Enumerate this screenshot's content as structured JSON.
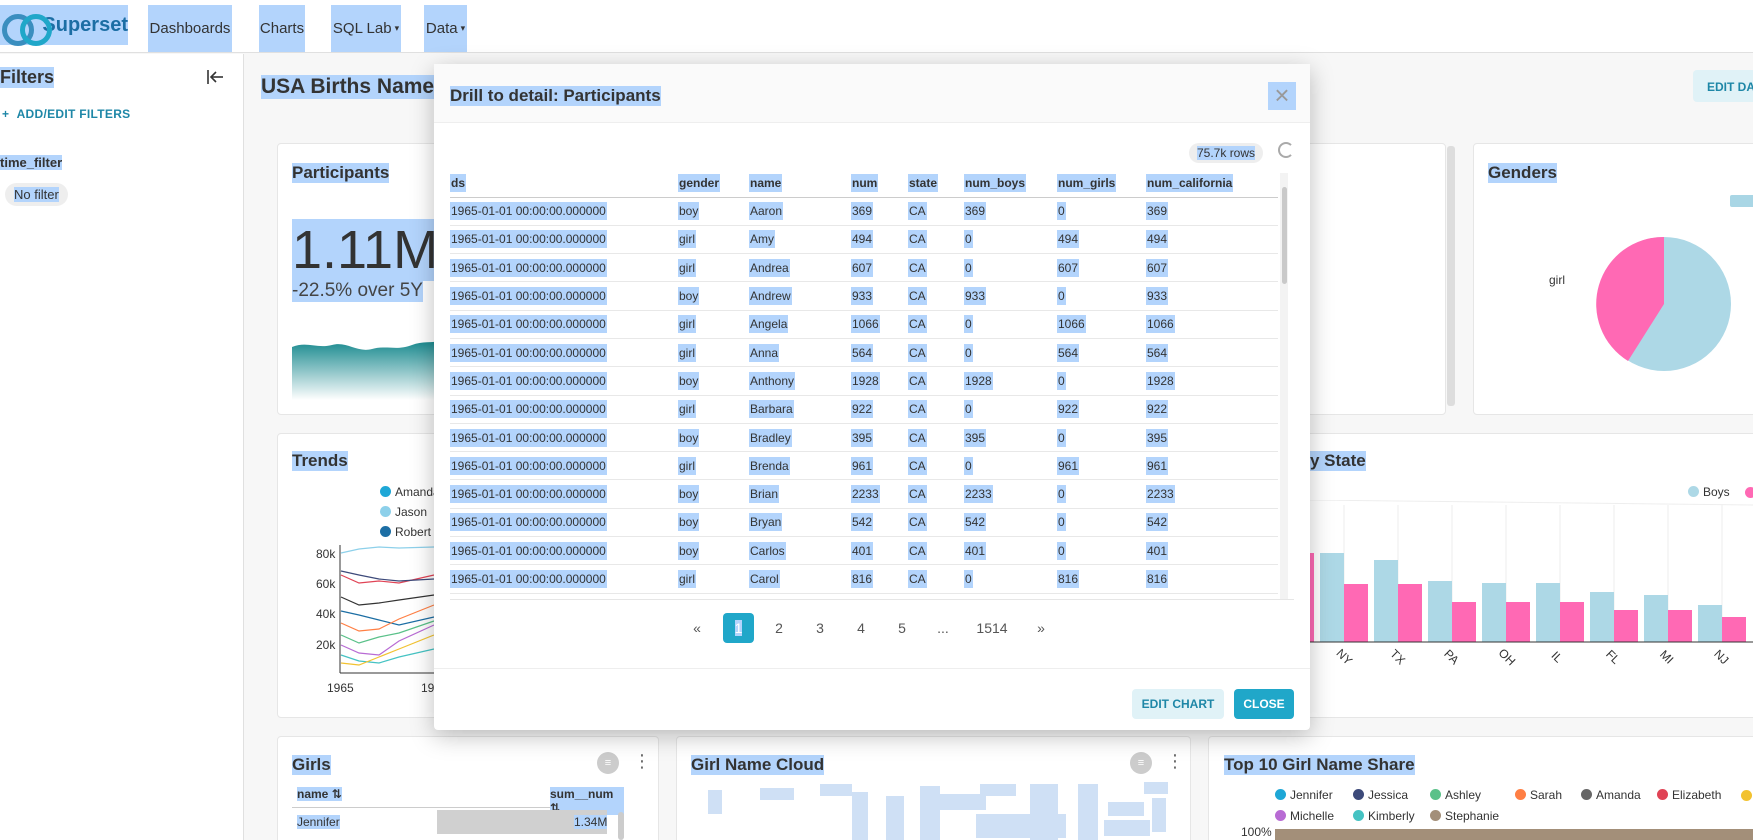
{
  "navbar": {
    "brand": "Superset",
    "items": [
      {
        "label": "Dashboards",
        "caret": ""
      },
      {
        "label": "Charts",
        "caret": ""
      },
      {
        "label": "SQL Lab",
        "caret": "▾"
      },
      {
        "label": "Data",
        "caret": "▾"
      }
    ]
  },
  "sidebar": {
    "title": "Filters",
    "add_filters": "ADD/EDIT FILTERS",
    "filter_label": "time_filter",
    "filter_value": "No filter"
  },
  "dashboard": {
    "title": "USA Births Names",
    "edit_label": "EDIT DASHBOARD",
    "participants": {
      "title": "Participants",
      "value": "1.11M",
      "change": "-22.5% over 5Y"
    },
    "genders": {
      "title": "Genders",
      "label_girl": "girl"
    },
    "trends": {
      "title": "Trends",
      "legend": [
        {
          "name": "Amanda",
          "color": "#1ea7d6"
        },
        {
          "name": "Jason",
          "color": "#8dd0ea"
        },
        {
          "name": "Robert",
          "color": "#1c6ea4"
        }
      ],
      "y_ticks": [
        "80k",
        "60k",
        "40k",
        "20k"
      ],
      "x_ticks": [
        "1965",
        "19"
      ]
    },
    "by_state": {
      "title": "y State",
      "legend_boys": "Boys",
      "states": [
        "NY",
        "TX",
        "PA",
        "OH",
        "IL",
        "FL",
        "MI",
        "NJ"
      ]
    },
    "girls": {
      "title": "Girls",
      "col_name": "name",
      "col_sum": "sum__num",
      "row_name": "Jennifer",
      "row_value": "1.34M"
    },
    "girl_cloud": {
      "title": "Girl Name Cloud"
    },
    "top10": {
      "title": "Top 10 Girl Name Share",
      "legend": [
        {
          "name": "Jennifer",
          "color": "#1ea7d6"
        },
        {
          "name": "Jessica",
          "color": "#3d4a7a"
        },
        {
          "name": "Ashley",
          "color": "#5ac189"
        },
        {
          "name": "Sarah",
          "color": "#ff7f44"
        },
        {
          "name": "Amanda",
          "color": "#666666"
        },
        {
          "name": "Elizabeth",
          "color": "#e04355"
        },
        {
          "name": "Michelle",
          "color": "#b86bd4"
        },
        {
          "name": "Kimberly",
          "color": "#45c3c3"
        },
        {
          "name": "Stephanie",
          "color": "#a38f79"
        }
      ],
      "y_tick": "100%"
    }
  },
  "modal": {
    "title": "Drill to detail: Participants",
    "rows_badge": "75.7k rows",
    "columns": [
      "ds",
      "gender",
      "name",
      "num",
      "state",
      "num_boys",
      "num_girls",
      "num_california"
    ],
    "rows": [
      [
        "1965-01-01 00:00:00.000000",
        "boy",
        "Aaron",
        "369",
        "CA",
        "369",
        "0",
        "369"
      ],
      [
        "1965-01-01 00:00:00.000000",
        "girl",
        "Amy",
        "494",
        "CA",
        "0",
        "494",
        "494"
      ],
      [
        "1965-01-01 00:00:00.000000",
        "girl",
        "Andrea",
        "607",
        "CA",
        "0",
        "607",
        "607"
      ],
      [
        "1965-01-01 00:00:00.000000",
        "boy",
        "Andrew",
        "933",
        "CA",
        "933",
        "0",
        "933"
      ],
      [
        "1965-01-01 00:00:00.000000",
        "girl",
        "Angela",
        "1066",
        "CA",
        "0",
        "1066",
        "1066"
      ],
      [
        "1965-01-01 00:00:00.000000",
        "girl",
        "Anna",
        "564",
        "CA",
        "0",
        "564",
        "564"
      ],
      [
        "1965-01-01 00:00:00.000000",
        "boy",
        "Anthony",
        "1928",
        "CA",
        "1928",
        "0",
        "1928"
      ],
      [
        "1965-01-01 00:00:00.000000",
        "girl",
        "Barbara",
        "922",
        "CA",
        "0",
        "922",
        "922"
      ],
      [
        "1965-01-01 00:00:00.000000",
        "boy",
        "Bradley",
        "395",
        "CA",
        "395",
        "0",
        "395"
      ],
      [
        "1965-01-01 00:00:00.000000",
        "girl",
        "Brenda",
        "961",
        "CA",
        "0",
        "961",
        "961"
      ],
      [
        "1965-01-01 00:00:00.000000",
        "boy",
        "Brian",
        "2233",
        "CA",
        "2233",
        "0",
        "2233"
      ],
      [
        "1965-01-01 00:00:00.000000",
        "boy",
        "Bryan",
        "542",
        "CA",
        "542",
        "0",
        "542"
      ],
      [
        "1965-01-01 00:00:00.000000",
        "boy",
        "Carlos",
        "401",
        "CA",
        "401",
        "0",
        "401"
      ],
      [
        "1965-01-01 00:00:00.000000",
        "girl",
        "Carol",
        "816",
        "CA",
        "0",
        "816",
        "816"
      ]
    ],
    "pager": [
      "«",
      "1",
      "2",
      "3",
      "4",
      "5",
      "...",
      "1514",
      "»"
    ],
    "edit_chart": "EDIT CHART",
    "close": "CLOSE"
  }
}
